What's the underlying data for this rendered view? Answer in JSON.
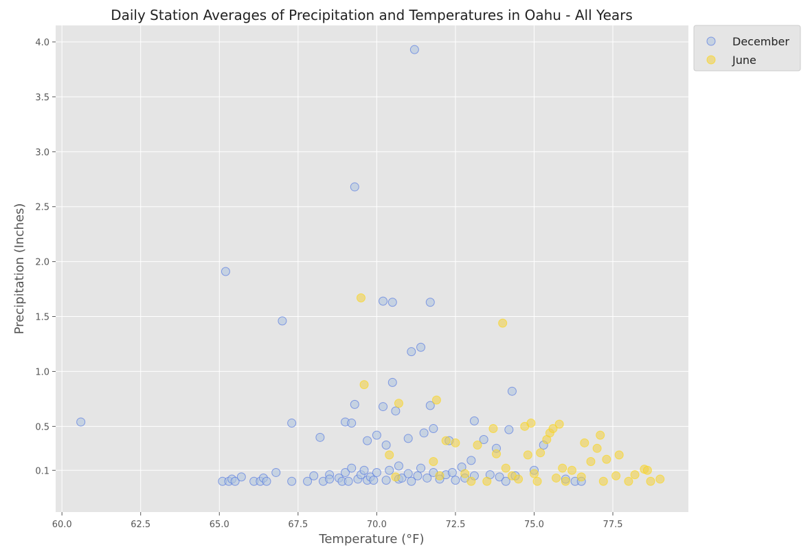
{
  "chart_data": {
    "type": "scatter",
    "title": "Daily Station Averages of Precipitation and Temperatures in Oahu - All Years",
    "xlabel": "Temperature (°F)",
    "ylabel": "Precipitation (Inches)",
    "xlim": [
      59.8,
      79.9
    ],
    "ylim": [
      -0.28,
      4.15
    ],
    "xticks": [
      60.0,
      62.5,
      65.0,
      67.5,
      70.0,
      72.5,
      75.0,
      77.5
    ],
    "xtick_labels": [
      "60.0",
      "62.5",
      "65.0",
      "67.5",
      "70.0",
      "72.5",
      "75.0",
      "77.5"
    ],
    "yticks": [
      0.1,
      0.5,
      1.0,
      1.5,
      2.0,
      2.5,
      3.0,
      3.5,
      4.0
    ],
    "ytick_labels": [
      "0.1",
      "0.5",
      "1.0",
      "1.5",
      "2.0",
      "2.5",
      "3.0",
      "3.5",
      "4.0"
    ],
    "grid": true,
    "legend_position": "outside-top-right",
    "colors": {
      "background": "#e5e5e5",
      "grid": "#ffffff",
      "text": "#555555"
    },
    "series": [
      {
        "name": "December",
        "color": "#b0c4de",
        "edge": "#4169e1",
        "points": [
          [
            60.6,
            0.54
          ],
          [
            65.1,
            0.0
          ],
          [
            65.2,
            1.91
          ],
          [
            65.3,
            0.0
          ],
          [
            65.4,
            0.02
          ],
          [
            65.5,
            0.0
          ],
          [
            65.7,
            0.04
          ],
          [
            66.1,
            0.0
          ],
          [
            66.3,
            0.0
          ],
          [
            66.4,
            0.03
          ],
          [
            66.5,
            0.0
          ],
          [
            66.8,
            0.08
          ],
          [
            67.0,
            1.46
          ],
          [
            67.3,
            0.53
          ],
          [
            67.3,
            0.0
          ],
          [
            67.8,
            0.0
          ],
          [
            68.0,
            0.05
          ],
          [
            68.2,
            0.4
          ],
          [
            68.3,
            0.0
          ],
          [
            68.5,
            0.06
          ],
          [
            68.5,
            0.02
          ],
          [
            68.8,
            0.03
          ],
          [
            68.9,
            0.0
          ],
          [
            69.0,
            0.08
          ],
          [
            69.0,
            0.54
          ],
          [
            69.1,
            0.0
          ],
          [
            69.2,
            0.53
          ],
          [
            69.2,
            0.12
          ],
          [
            69.3,
            2.68
          ],
          [
            69.3,
            0.7
          ],
          [
            69.4,
            0.02
          ],
          [
            69.5,
            0.06
          ],
          [
            69.6,
            0.1
          ],
          [
            69.7,
            0.01
          ],
          [
            69.7,
            0.37
          ],
          [
            69.8,
            0.04
          ],
          [
            69.9,
            0.01
          ],
          [
            70.0,
            0.42
          ],
          [
            70.0,
            0.08
          ],
          [
            70.2,
            1.64
          ],
          [
            70.2,
            0.68
          ],
          [
            70.3,
            0.33
          ],
          [
            70.3,
            0.01
          ],
          [
            70.4,
            0.1
          ],
          [
            70.5,
            1.63
          ],
          [
            70.5,
            0.9
          ],
          [
            70.6,
            0.64
          ],
          [
            70.7,
            0.14
          ],
          [
            70.7,
            0.02
          ],
          [
            70.8,
            0.03
          ],
          [
            71.0,
            0.39
          ],
          [
            71.0,
            0.07
          ],
          [
            71.1,
            1.18
          ],
          [
            71.1,
            0.0
          ],
          [
            71.2,
            3.93
          ],
          [
            71.3,
            0.05
          ],
          [
            71.4,
            1.22
          ],
          [
            71.4,
            0.12
          ],
          [
            71.5,
            0.44
          ],
          [
            71.6,
            0.03
          ],
          [
            71.7,
            1.63
          ],
          [
            71.7,
            0.69
          ],
          [
            71.8,
            0.48
          ],
          [
            71.8,
            0.08
          ],
          [
            72.0,
            0.02
          ],
          [
            72.2,
            0.06
          ],
          [
            72.3,
            0.37
          ],
          [
            72.4,
            0.08
          ],
          [
            72.5,
            0.01
          ],
          [
            72.7,
            0.13
          ],
          [
            72.8,
            0.03
          ],
          [
            73.0,
            0.19
          ],
          [
            73.1,
            0.55
          ],
          [
            73.1,
            0.05
          ],
          [
            73.4,
            0.38
          ],
          [
            73.6,
            0.06
          ],
          [
            73.8,
            0.3
          ],
          [
            73.9,
            0.04
          ],
          [
            74.1,
            0.0
          ],
          [
            74.2,
            0.47
          ],
          [
            74.3,
            0.82
          ],
          [
            74.4,
            0.05
          ],
          [
            75.0,
            0.1
          ],
          [
            75.3,
            0.33
          ],
          [
            76.0,
            0.02
          ],
          [
            76.3,
            0.0
          ],
          [
            76.5,
            0.0
          ]
        ]
      },
      {
        "name": "June",
        "color": "#f0d04c",
        "edge": "#ffd700",
        "points": [
          [
            69.5,
            1.67
          ],
          [
            69.6,
            0.88
          ],
          [
            70.4,
            0.24
          ],
          [
            70.6,
            0.04
          ],
          [
            70.7,
            0.71
          ],
          [
            71.9,
            0.74
          ],
          [
            71.8,
            0.18
          ],
          [
            72.0,
            0.05
          ],
          [
            72.2,
            0.37
          ],
          [
            72.5,
            0.35
          ],
          [
            72.8,
            0.07
          ],
          [
            73.0,
            0.0
          ],
          [
            73.2,
            0.33
          ],
          [
            73.5,
            0.0
          ],
          [
            73.7,
            0.48
          ],
          [
            73.8,
            0.25
          ],
          [
            74.0,
            1.44
          ],
          [
            74.1,
            0.12
          ],
          [
            74.3,
            0.05
          ],
          [
            74.5,
            0.02
          ],
          [
            74.7,
            0.5
          ],
          [
            74.8,
            0.24
          ],
          [
            74.9,
            0.53
          ],
          [
            75.0,
            0.07
          ],
          [
            75.1,
            0.0
          ],
          [
            75.2,
            0.26
          ],
          [
            75.4,
            0.38
          ],
          [
            75.5,
            0.44
          ],
          [
            75.6,
            0.48
          ],
          [
            75.7,
            0.03
          ],
          [
            75.8,
            0.52
          ],
          [
            75.9,
            0.12
          ],
          [
            76.0,
            0.0
          ],
          [
            76.2,
            0.1
          ],
          [
            76.5,
            0.04
          ],
          [
            76.6,
            0.35
          ],
          [
            76.8,
            0.18
          ],
          [
            77.0,
            0.3
          ],
          [
            77.1,
            0.42
          ],
          [
            77.2,
            0.0
          ],
          [
            77.3,
            0.2
          ],
          [
            77.6,
            0.05
          ],
          [
            77.7,
            0.24
          ],
          [
            78.0,
            0.0
          ],
          [
            78.2,
            0.06
          ],
          [
            78.5,
            0.11
          ],
          [
            78.6,
            0.1
          ],
          [
            78.7,
            0.0
          ],
          [
            79.0,
            0.02
          ]
        ]
      }
    ]
  }
}
